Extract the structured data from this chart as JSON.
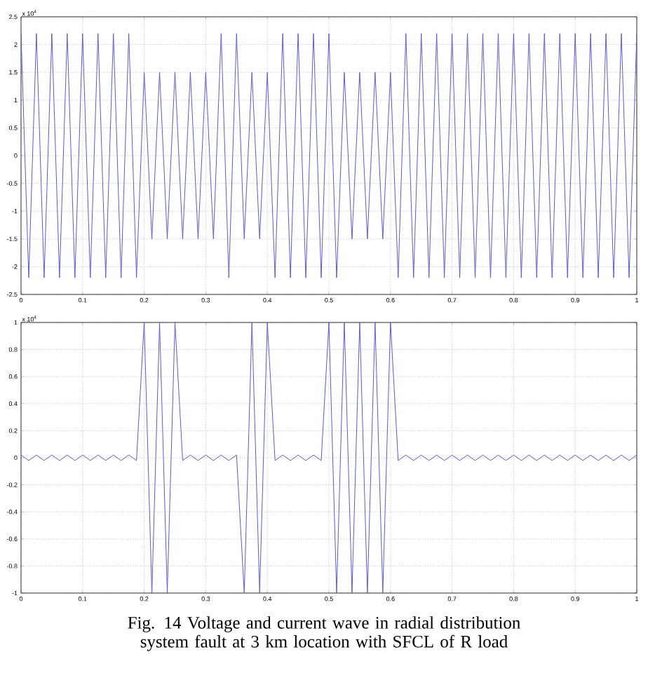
{
  "chart_data": [
    {
      "type": "line",
      "x": [
        0,
        0.0125,
        0.025,
        0.0375,
        0.05,
        0.0625,
        0.075,
        0.0875,
        0.1,
        0.1125,
        0.125,
        0.1375,
        0.15,
        0.1625,
        0.175,
        0.1875,
        0.2,
        0.2125,
        0.225,
        0.2375,
        0.25,
        0.2625,
        0.275,
        0.2875,
        0.3,
        0.3125,
        0.325,
        0.3375,
        0.35,
        0.3625,
        0.375,
        0.3875,
        0.4,
        0.4125,
        0.425,
        0.4375,
        0.45,
        0.4625,
        0.475,
        0.4875,
        0.5,
        0.5125,
        0.525,
        0.5375,
        0.55,
        0.5625,
        0.575,
        0.5875,
        0.6,
        0.6125,
        0.625,
        0.6375,
        0.65,
        0.6625,
        0.675,
        0.6875,
        0.7,
        0.7125,
        0.725,
        0.7375,
        0.75,
        0.7625,
        0.775,
        0.7875,
        0.8,
        0.8125,
        0.825,
        0.8375,
        0.85,
        0.8625,
        0.875,
        0.8875,
        0.9,
        0.9125,
        0.925,
        0.9375,
        0.95,
        0.9625,
        0.975,
        0.9875,
        1
      ],
      "series": [
        {
          "color": "#5a5ad0",
          "values": [
            2.2,
            -2.2,
            2.2,
            -2.2,
            2.2,
            -2.2,
            2.2,
            -2.2,
            2.2,
            -2.2,
            2.2,
            -2.2,
            2.2,
            -2.2,
            2.2,
            -2.2,
            1.5,
            -1.5,
            1.5,
            -1.5,
            1.5,
            -1.5,
            1.5,
            -1.5,
            1.5,
            -1.5,
            2.2,
            -2.2,
            2.2,
            -1.5,
            1.5,
            -1.5,
            1.5,
            -2.2,
            2.2,
            -2.2,
            2.2,
            -2.2,
            2.2,
            -2.2,
            2.2,
            -2.2,
            1.5,
            -1.5,
            1.5,
            -1.5,
            1.5,
            -1.5,
            1.5,
            -2.2,
            2.2,
            -2.2,
            2.2,
            -2.2,
            2.2,
            -2.2,
            2.2,
            -2.2,
            2.2,
            -2.2,
            2.2,
            -2.2,
            2.2,
            -2.2,
            2.2,
            -2.2,
            2.2,
            -2.2,
            2.2,
            -2.2,
            2.2,
            -2.2,
            2.2,
            -2.2,
            2.2,
            -2.2,
            2.2,
            -2.2,
            2.2,
            -2.2,
            2.2
          ]
        }
      ],
      "xlim": [
        0,
        1
      ],
      "xticks": [
        0,
        0.1,
        0.2,
        0.3,
        0.4,
        0.5,
        0.6,
        0.7,
        0.8,
        0.9,
        1
      ],
      "ylim": [
        -2.5,
        2.5
      ],
      "yticks": [
        -2.5,
        -2,
        -1.5,
        -1,
        -0.5,
        0,
        0.5,
        1,
        1.5,
        2,
        2.5
      ],
      "grid": true,
      "marker": "none",
      "line_style": "solid",
      "annotations": [
        "x 10$^{4}$"
      ]
    },
    {
      "type": "line",
      "x": [
        0,
        0.0125,
        0.025,
        0.0375,
        0.05,
        0.0625,
        0.075,
        0.0875,
        0.1,
        0.1125,
        0.125,
        0.1375,
        0.15,
        0.1625,
        0.175,
        0.1875,
        0.2,
        0.2125,
        0.225,
        0.2375,
        0.25,
        0.2625,
        0.275,
        0.2875,
        0.3,
        0.3125,
        0.325,
        0.3375,
        0.35,
        0.3625,
        0.375,
        0.3875,
        0.4,
        0.4125,
        0.425,
        0.4375,
        0.45,
        0.4625,
        0.475,
        0.4875,
        0.5,
        0.5125,
        0.525,
        0.5375,
        0.55,
        0.5625,
        0.575,
        0.5875,
        0.6,
        0.6125,
        0.625,
        0.6375,
        0.65,
        0.6625,
        0.675,
        0.6875,
        0.7,
        0.7125,
        0.725,
        0.7375,
        0.75,
        0.7625,
        0.775,
        0.7875,
        0.8,
        0.8125,
        0.825,
        0.8375,
        0.85,
        0.8625,
        0.875,
        0.8875,
        0.9,
        0.9125,
        0.925,
        0.9375,
        0.95,
        0.9625,
        0.975,
        0.9875,
        1
      ],
      "series": [
        {
          "color": "#5a5ad0",
          "values": [
            0.02,
            -0.02,
            0.02,
            -0.02,
            0.02,
            -0.02,
            0.02,
            -0.02,
            0.02,
            -0.02,
            0.02,
            -0.02,
            0.02,
            -0.02,
            0.02,
            -0.02,
            1,
            -1,
            1,
            -1,
            1,
            -0.02,
            0.02,
            -0.02,
            0.02,
            -0.02,
            0.02,
            -0.02,
            0.02,
            -1,
            1,
            -1,
            1,
            -0.02,
            0.02,
            -0.02,
            0.02,
            -0.02,
            0.02,
            -0.02,
            1,
            -1,
            1,
            -1,
            1,
            -1,
            1,
            -1,
            1,
            -0.02,
            0.02,
            -0.02,
            0.02,
            -0.02,
            0.02,
            -0.02,
            0.02,
            -0.02,
            0.02,
            -0.02,
            0.02,
            -0.02,
            0.02,
            -0.02,
            0.02,
            -0.02,
            0.02,
            -0.02,
            0.02,
            -0.02,
            0.02,
            -0.02,
            0.02,
            -0.02,
            0.02,
            -0.02,
            0.02,
            -0.02,
            0.02,
            -0.02,
            0.02
          ]
        }
      ],
      "xlim": [
        0,
        1
      ],
      "xticks": [
        0,
        0.1,
        0.2,
        0.3,
        0.4,
        0.5,
        0.6,
        0.7,
        0.8,
        0.9,
        1
      ],
      "ylim": [
        -1,
        1
      ],
      "yticks": [
        -1,
        -0.8,
        -0.6,
        -0.4,
        -0.2,
        0,
        0.2,
        0.4,
        0.6,
        0.8,
        1
      ],
      "grid": true,
      "marker": "none",
      "line_style": "solid",
      "annotations": [
        "x 10$^{4}$",
        "Fig. 14 Voltage and current wave in radial distribution system fault at 3 km location with SFCL of R load"
      ]
    }
  ]
}
